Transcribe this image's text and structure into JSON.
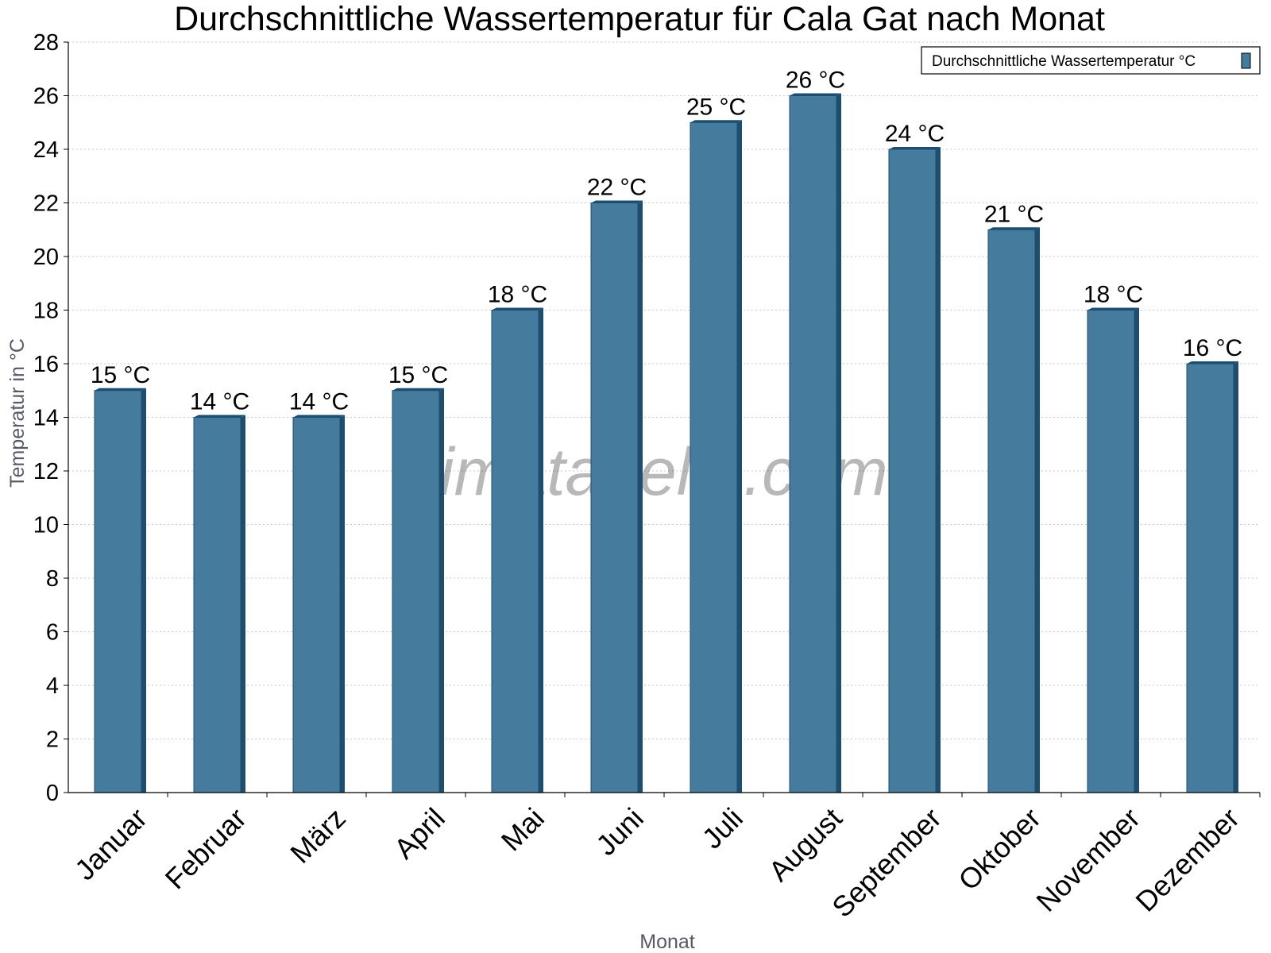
{
  "chart_data": {
    "type": "bar",
    "title": "Durchschnittliche Wassertemperatur für Cala Gat nach Monat",
    "xlabel": "Monat",
    "ylabel": "Temperatur in °C",
    "categories": [
      "Januar",
      "Februar",
      "März",
      "April",
      "Mai",
      "Juni",
      "Juli",
      "August",
      "September",
      "Oktober",
      "November",
      "Dezember"
    ],
    "series": [
      {
        "name": "Durchschnittliche Wassertemperatur °C",
        "values": [
          15,
          14,
          14,
          15,
          18,
          22,
          25,
          26,
          24,
          21,
          18,
          16
        ],
        "data_labels": [
          "15 °C",
          "14 °C",
          "14 °C",
          "15 °C",
          "18 °C",
          "22 °C",
          "25 °C",
          "26 °C",
          "24 °C",
          "21 °C",
          "18 °C",
          "16 °C"
        ],
        "color": "#457b9d",
        "edge_color": "#1d4e70"
      }
    ],
    "ylim": [
      0,
      28
    ],
    "yticks": [
      "0",
      "2",
      "4",
      "6",
      "8",
      "10",
      "12",
      "14",
      "16",
      "18",
      "20",
      "22",
      "24",
      "26",
      "28"
    ],
    "grid": true,
    "legend_position": "top-right",
    "watermark": "klimatabelle.com"
  }
}
